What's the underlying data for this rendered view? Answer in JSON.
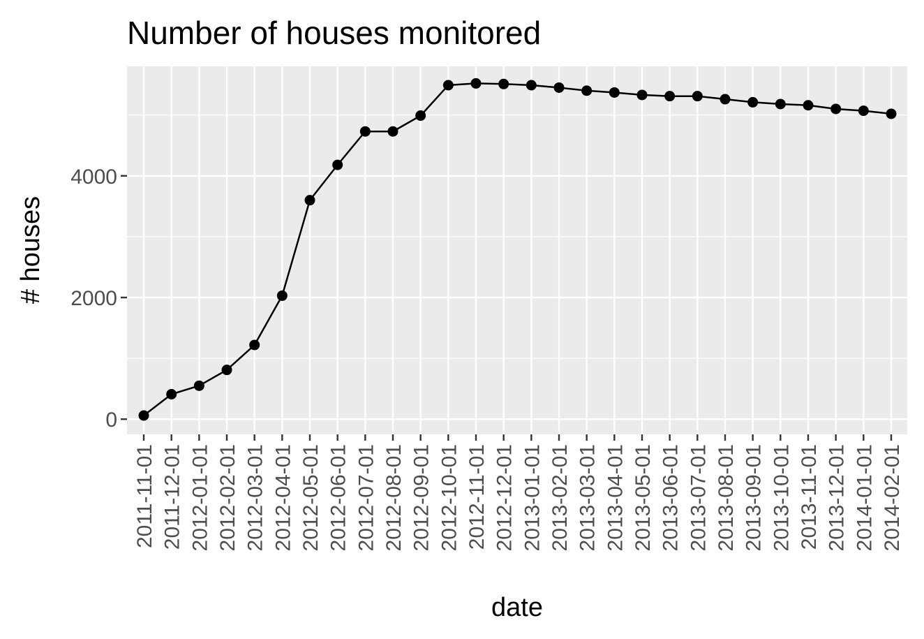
{
  "chart_data": {
    "type": "line",
    "title": "Number of houses monitored",
    "xlabel": "date",
    "ylabel": "# houses",
    "x": [
      "2011-11-01",
      "2011-12-01",
      "2012-01-01",
      "2012-02-01",
      "2012-03-01",
      "2012-04-01",
      "2012-05-01",
      "2012-06-01",
      "2012-07-01",
      "2012-08-01",
      "2012-09-01",
      "2012-10-01",
      "2012-11-01",
      "2012-12-01",
      "2013-01-01",
      "2013-02-01",
      "2013-03-01",
      "2013-04-01",
      "2013-05-01",
      "2013-06-01",
      "2013-07-01",
      "2013-08-01",
      "2013-09-01",
      "2013-10-01",
      "2013-11-01",
      "2013-12-01",
      "2014-01-01",
      "2014-02-01"
    ],
    "series": [
      {
        "values": [
          60,
          410,
          550,
          810,
          1220,
          2030,
          3600,
          4180,
          4730,
          4730,
          4990,
          5490,
          5520,
          5510,
          5490,
          5450,
          5400,
          5370,
          5330,
          5310,
          5310,
          5260,
          5210,
          5180,
          5160,
          5100,
          5070,
          5020
        ]
      }
    ],
    "ylim": [
      -250,
      5800
    ],
    "yticks": [
      0,
      2000,
      4000
    ],
    "ytick_labels": [
      "0",
      "2000",
      "4000"
    ],
    "grid": true,
    "colors": {
      "panel": "#ebebeb",
      "grid": "#ffffff",
      "line": "#000000",
      "tick_text": "#4d4d4d",
      "tick_mark": "#333333"
    }
  }
}
